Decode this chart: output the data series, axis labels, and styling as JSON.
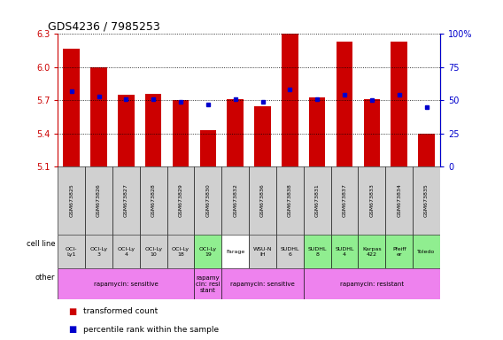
{
  "title": "GDS4236 / 7985253",
  "samples": [
    "GSM673825",
    "GSM673826",
    "GSM673827",
    "GSM673828",
    "GSM673829",
    "GSM673830",
    "GSM673832",
    "GSM673836",
    "GSM673838",
    "GSM673831",
    "GSM673837",
    "GSM673833",
    "GSM673834",
    "GSM673835"
  ],
  "transformed_count": [
    6.17,
    6.0,
    5.75,
    5.76,
    5.7,
    5.43,
    5.71,
    5.65,
    6.3,
    5.73,
    6.23,
    5.71,
    6.23,
    5.4
  ],
  "percentile_rank": [
    57,
    53,
    51,
    51,
    49,
    47,
    51,
    49,
    58,
    51,
    54,
    50,
    54,
    45
  ],
  "y_min": 5.1,
  "y_max": 6.3,
  "y_ticks": [
    5.1,
    5.4,
    5.7,
    6.0,
    6.3
  ],
  "y2_ticks": [
    0,
    25,
    50,
    75,
    100
  ],
  "bar_color": "#cc0000",
  "dot_color": "#0000cc",
  "cell_line_labels": [
    "OCI-\nLy1",
    "OCI-Ly\n3",
    "OCI-Ly\n4",
    "OCI-Ly\n10",
    "OCI-Ly\n18",
    "OCI-Ly\n19",
    "Farage",
    "WSU-N\nIH",
    "SUDHL\n6",
    "SUDHL\n8",
    "SUDHL\n4",
    "Karpas\n422",
    "Pfeiff\ner",
    "Toledo"
  ],
  "cell_line_bg": [
    "#d0d0d0",
    "#d0d0d0",
    "#d0d0d0",
    "#d0d0d0",
    "#d0d0d0",
    "#90ee90",
    "#ffffff",
    "#d0d0d0",
    "#d0d0d0",
    "#90ee90",
    "#90ee90",
    "#90ee90",
    "#90ee90",
    "#90ee90"
  ],
  "other_data": [
    {
      "start": 0,
      "end": 4,
      "label": "rapamycin: sensitive",
      "color": "#ee82ee"
    },
    {
      "start": 5,
      "end": 5,
      "label": "rapamy\ncin: resi\nstant",
      "color": "#ee82ee"
    },
    {
      "start": 6,
      "end": 8,
      "label": "rapamycin: sensitive",
      "color": "#ee82ee"
    },
    {
      "start": 9,
      "end": 13,
      "label": "rapamycin: resistant",
      "color": "#ee82ee"
    }
  ],
  "background_color": "#ffffff",
  "left_label_color": "#cc0000",
  "right_label_color": "#0000cc"
}
